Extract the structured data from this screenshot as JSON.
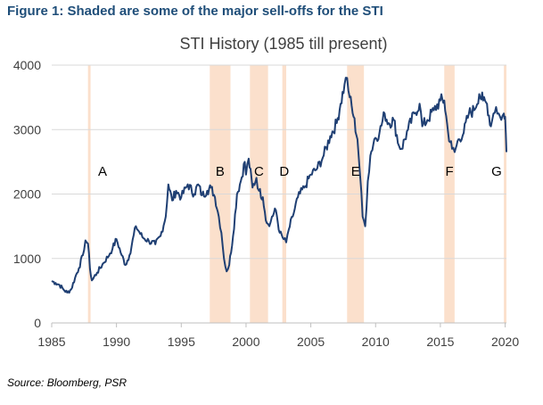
{
  "figure_title": "Figure 1: Shaded are some of the major sell-offs for the STI",
  "source": "Source: Bloomberg, PSR",
  "colors": {
    "title": "#1f4e79",
    "line": "#1f3f73",
    "shade": "#fbe0cc",
    "axis_text": "#404040"
  },
  "chart_data": {
    "type": "line",
    "title": "STI History (1985 till present)",
    "xlabel": "",
    "ylabel": "",
    "xlim": [
      1985,
      2020.1
    ],
    "ylim": [
      0,
      4000
    ],
    "x_ticks": [
      "1985",
      "1990",
      "1995",
      "2000",
      "2005",
      "2010",
      "2015",
      "2020"
    ],
    "y_ticks": [
      "0",
      "1000",
      "2000",
      "3000",
      "4000"
    ],
    "grid": "horizontal",
    "legend": "none",
    "shaded_periods": [
      {
        "label": "A",
        "start": 1987.8,
        "end": 1988.0
      },
      {
        "label": "B",
        "start": 1997.2,
        "end": 1998.8
      },
      {
        "label": "C",
        "start": 2000.3,
        "end": 2001.7
      },
      {
        "label": "D",
        "start": 2002.8,
        "end": 2003.1
      },
      {
        "label": "E",
        "start": 2007.8,
        "end": 2009.1
      },
      {
        "label": "F",
        "start": 2015.3,
        "end": 2016.1
      },
      {
        "label": "G",
        "start": 2019.9,
        "end": 2020.1
      }
    ],
    "series": [
      {
        "x": [
          1985.0,
          1985.3,
          1985.6,
          1985.9,
          1986.2,
          1986.5,
          1986.8,
          1987.1,
          1987.4,
          1987.6,
          1987.8,
          1987.95,
          1988.1,
          1988.5,
          1989.0,
          1989.5,
          1989.7,
          1990.0,
          1990.4,
          1990.7,
          1991.0,
          1991.5,
          1992.0,
          1992.5,
          1993.0,
          1993.4,
          1993.8,
          1994.0,
          1994.3,
          1994.6,
          1995.0,
          1995.5,
          1996.0,
          1996.3,
          1996.6,
          1997.0,
          1997.3,
          1997.6,
          1997.9,
          1998.1,
          1998.3,
          1998.5,
          1998.7,
          1999.0,
          1999.3,
          1999.6,
          1999.9,
          2000.0,
          2000.2,
          2000.5,
          2000.8,
          2001.0,
          2001.3,
          2001.6,
          2001.8,
          2002.0,
          2002.3,
          2002.6,
          2002.9,
          2003.1,
          2003.3,
          2003.6,
          2004.0,
          2004.5,
          2005.0,
          2005.5,
          2006.0,
          2006.5,
          2007.0,
          2007.3,
          2007.6,
          2007.8,
          2008.0,
          2008.3,
          2008.6,
          2008.8,
          2009.0,
          2009.2,
          2009.4,
          2009.6,
          2009.9,
          2010.3,
          2010.7,
          2011.0,
          2011.4,
          2011.8,
          2012.0,
          2012.5,
          2013.0,
          2013.4,
          2013.6,
          2014.0,
          2014.5,
          2015.0,
          2015.3,
          2015.6,
          2015.9,
          2016.1,
          2016.4,
          2016.8,
          2017.2,
          2017.6,
          2018.0,
          2018.3,
          2018.6,
          2018.9,
          2019.1,
          2019.3,
          2019.5,
          2019.7,
          2019.9,
          2020.0,
          2020.1
        ],
        "values": [
          650,
          620,
          590,
          520,
          470,
          520,
          700,
          850,
          1050,
          1280,
          1230,
          840,
          660,
          780,
          930,
          1080,
          1160,
          1300,
          1050,
          900,
          1050,
          1500,
          1330,
          1270,
          1220,
          1350,
          1650,
          2150,
          1900,
          2050,
          1950,
          2150,
          2000,
          2150,
          1980,
          2050,
          2100,
          1950,
          1650,
          1400,
          1000,
          800,
          900,
          1350,
          2000,
          2200,
          2500,
          2300,
          2550,
          2100,
          2250,
          2050,
          1950,
          1550,
          1500,
          1650,
          1750,
          1400,
          1300,
          1250,
          1450,
          1650,
          1950,
          2100,
          2300,
          2400,
          2600,
          2900,
          3100,
          3400,
          3700,
          3800,
          3500,
          3200,
          2850,
          2300,
          1650,
          1500,
          2200,
          2600,
          2850,
          2950,
          3250,
          3100,
          3150,
          2750,
          2700,
          3000,
          3250,
          3400,
          3050,
          3150,
          3300,
          3450,
          3450,
          2950,
          2700,
          2650,
          2850,
          2950,
          3250,
          3300,
          3550,
          3450,
          3400,
          3050,
          3250,
          3350,
          3250,
          3150,
          3250,
          3200,
          2650
        ]
      }
    ]
  }
}
